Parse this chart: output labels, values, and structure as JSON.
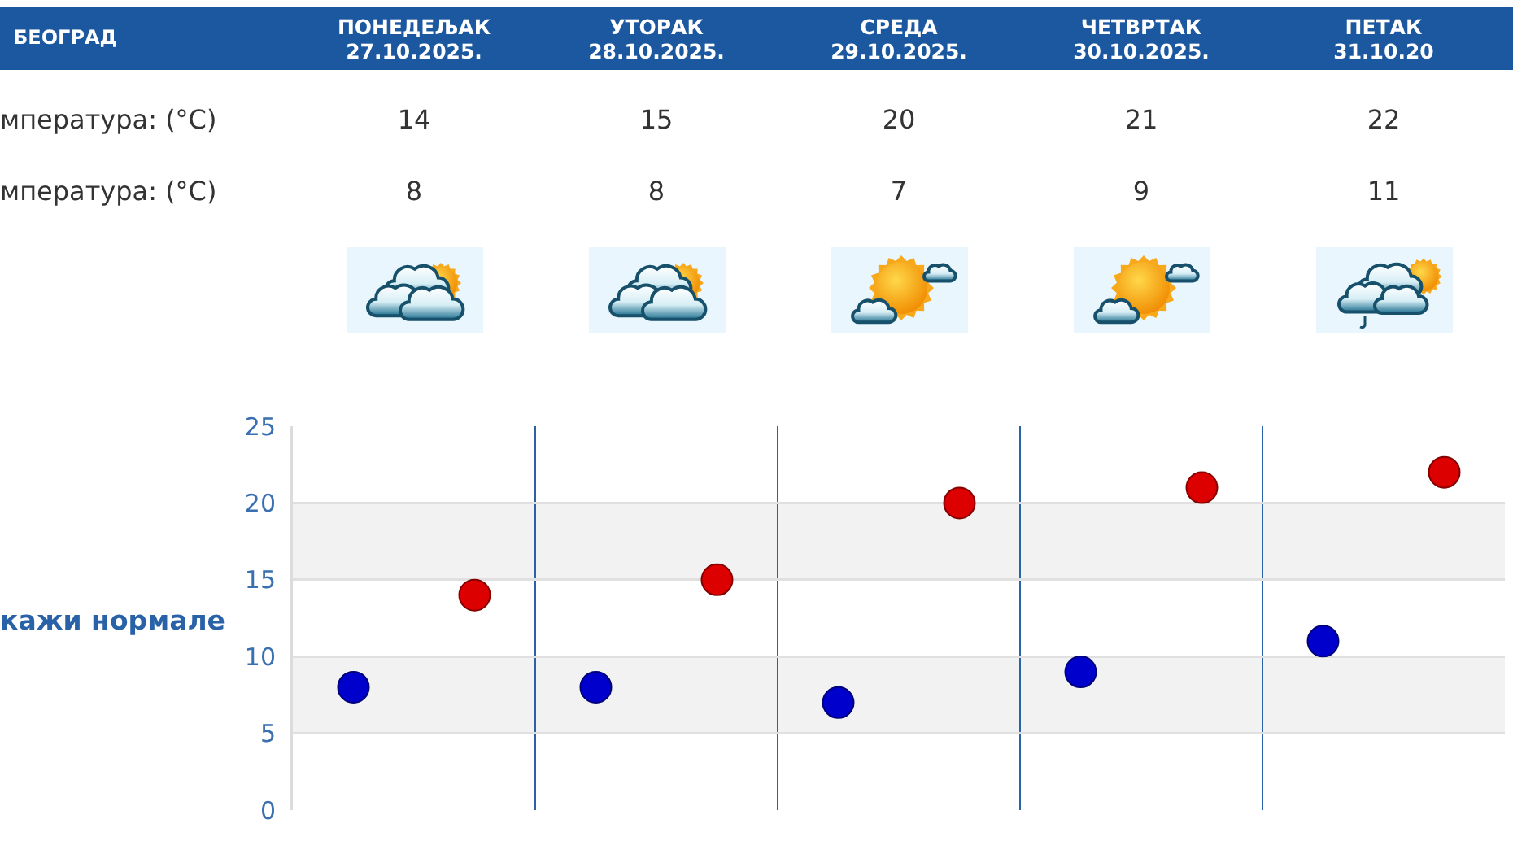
{
  "chart_data": {
    "type": "scatter",
    "title": "БЕОГРАД",
    "categories": [
      null,
      null,
      null,
      null,
      null
    ],
    "series": [
      {
        "color": "#dd0000",
        "values": [
          14,
          15,
          20,
          21,
          22
        ]
      },
      {
        "color": "#0000cc",
        "values": [
          8,
          8,
          7,
          9,
          11
        ]
      }
    ],
    "ylim": [
      0,
      25
    ],
    "yticks": [
      0,
      5,
      10,
      15,
      20,
      25
    ],
    "grid": true,
    "marker": "circle",
    "data_labels": true,
    "bands": [
      {
        "axis": "y",
        "from": 5,
        "to": 10,
        "color": "#f2f2f2"
      },
      {
        "axis": "y",
        "from": 15,
        "to": 20,
        "color": "#f2f2f2"
      }
    ],
    "annotations": [
      "ПОНЕДЕЉАК 27.10.2025.",
      "УТОРАК 28.10.2025.",
      "СРЕДА 29.10.2025.",
      "ЧЕТВРТАК 30.10.2025.",
      "ПЕТАК 31.10.20",
      "мпература: (°C)",
      "мпература: (°C)",
      "кажи нормале"
    ]
  }
}
